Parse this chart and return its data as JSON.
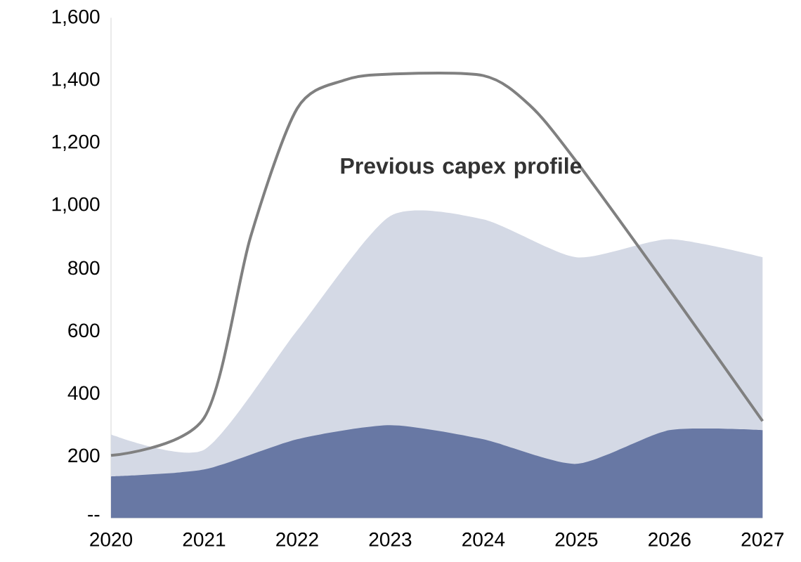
{
  "chart_data": {
    "type": "area",
    "stacked": true,
    "x": [
      2020,
      2021,
      2022,
      2023,
      2024,
      2025,
      2026,
      2027
    ],
    "series": [
      {
        "color": "#6878a4",
        "values": [
          133,
          155,
          252,
          297,
          252,
          173,
          281,
          281
        ]
      },
      {
        "color": "#d4d9e5",
        "values": [
          134,
          63,
          348,
          669,
          703,
          661,
          611,
          553
        ]
      },
      {
        "type": "line",
        "color": "#808080",
        "x": [
          2020,
          2021,
          2021.5,
          2022,
          2022.5,
          2023,
          2024,
          2024.5,
          2025,
          2026,
          2027
        ],
        "values": [
          200,
          320,
          900,
          1310,
          1400,
          1420,
          1415,
          1320,
          1140,
          730,
          310
        ]
      }
    ],
    "xlim": [
      2020,
      2027
    ],
    "xticks": [
      2020,
      2021,
      2022,
      2023,
      2024,
      2025,
      2026,
      2027
    ],
    "ylim": [
      0,
      1600
    ],
    "yticks": [
      {
        "value": 0,
        "label": "--"
      },
      200,
      400,
      600,
      800,
      {
        "value": 1000,
        "label": "1,000"
      },
      {
        "value": 1200,
        "label": "1,200"
      },
      {
        "value": 1400,
        "label": "1,400"
      },
      {
        "value": 1600,
        "label": "1,600"
      }
    ],
    "annotations": [
      "**Previous capex profile**"
    ]
  }
}
